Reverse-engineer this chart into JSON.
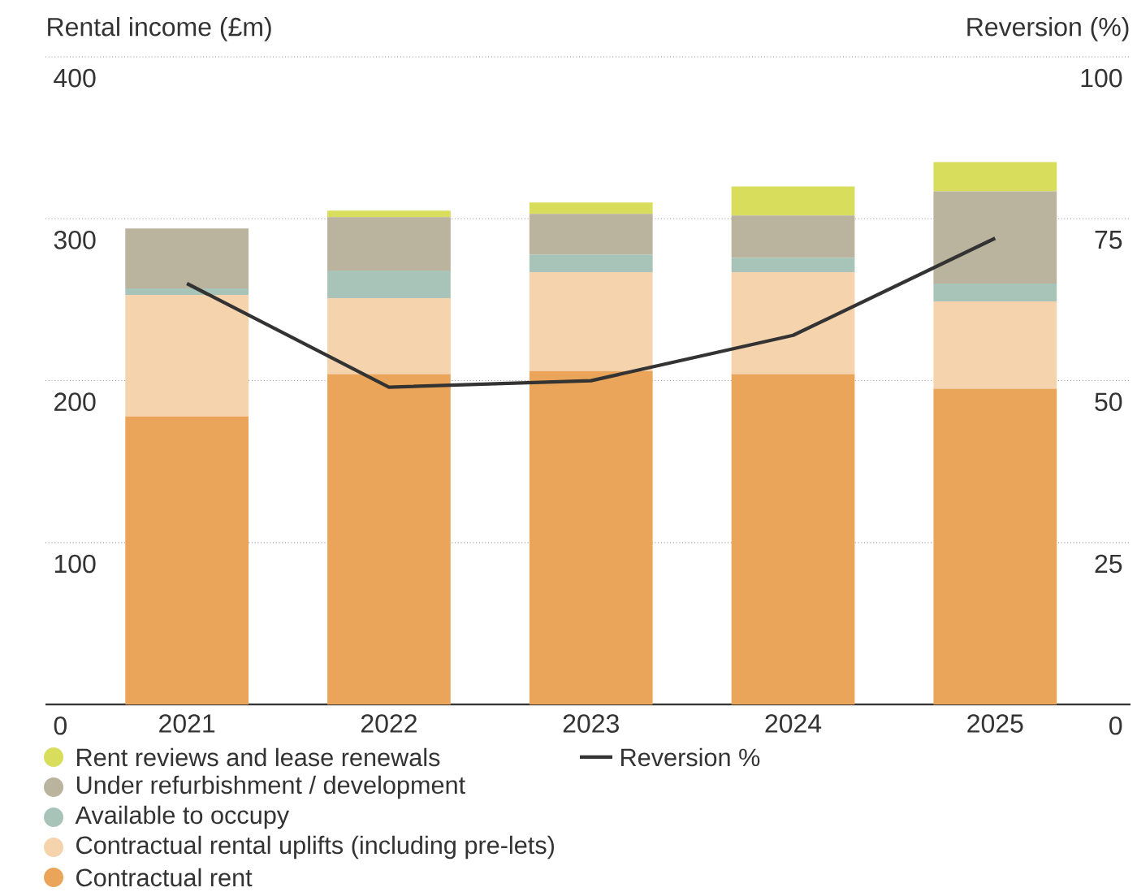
{
  "chart_data": {
    "type": "bar",
    "stacked": true,
    "ylabel": "Rental income (£m)",
    "y2label": "Reversion (%)",
    "categories": [
      "2021",
      "2022",
      "2023",
      "2024",
      "2025"
    ],
    "series": [
      {
        "name": "Contractual rent",
        "color": "#eba55a",
        "values": [
          178,
          204,
          206,
          204,
          195
        ]
      },
      {
        "name": "Contractual rental uplifts (including pre-lets)",
        "color": "#f5d3ad",
        "values": [
          75,
          47,
          61,
          63,
          54
        ]
      },
      {
        "name": "Available to occupy",
        "color": "#a8c4b8",
        "values": [
          4,
          17,
          11,
          9,
          11
        ]
      },
      {
        "name": "Under refurbishment / development",
        "color": "#bab39d",
        "values": [
          37,
          33,
          25,
          26,
          57
        ]
      },
      {
        "name": "Rent reviews and lease renewals",
        "color": "#d8de5c",
        "values": [
          0,
          4,
          7,
          18,
          18
        ]
      },
      {
        "name": "Reversion %",
        "type": "line",
        "axis": "y2",
        "color": "#333333",
        "values": [
          65,
          49,
          50,
          57,
          72
        ]
      }
    ],
    "ylim": [
      0,
      400
    ],
    "yticks": [
      0,
      100,
      200,
      300,
      400
    ],
    "y2lim": [
      0,
      100
    ],
    "y2ticks": [
      0,
      25,
      50,
      75,
      100
    ],
    "grid": "y",
    "legend": "bottom"
  }
}
